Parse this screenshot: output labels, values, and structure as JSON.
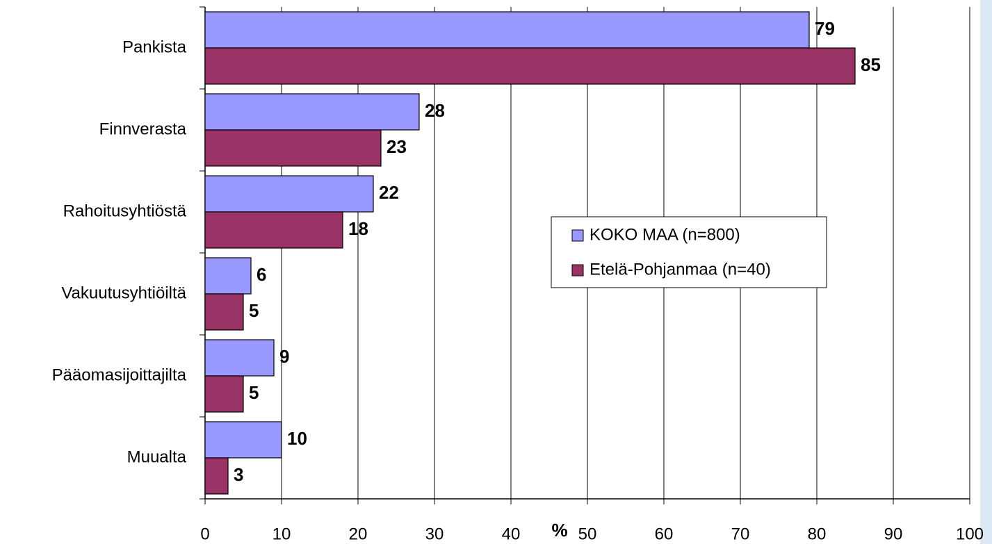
{
  "chart_data": {
    "type": "hbar",
    "categories": [
      "Pankista",
      "Finnverasta",
      "Rahoitusyhtiöstä",
      "Vakuutusyhtiöiltä",
      "Pääomasijoittajilta",
      "Muualta"
    ],
    "series": [
      {
        "name": "KOKO MAA (n=800)",
        "color": "#9999ff",
        "values": [
          79,
          28,
          22,
          6,
          9,
          10
        ]
      },
      {
        "name": "Etelä-Pohjanmaa (n=40)",
        "color": "#993366",
        "values": [
          85,
          23,
          18,
          5,
          5,
          3
        ]
      }
    ],
    "x_label": "%",
    "xlim": [
      0,
      100
    ],
    "xticks": [
      0,
      10,
      20,
      30,
      40,
      50,
      60,
      70,
      80,
      90,
      100
    ],
    "grid": true,
    "legend": "right"
  }
}
